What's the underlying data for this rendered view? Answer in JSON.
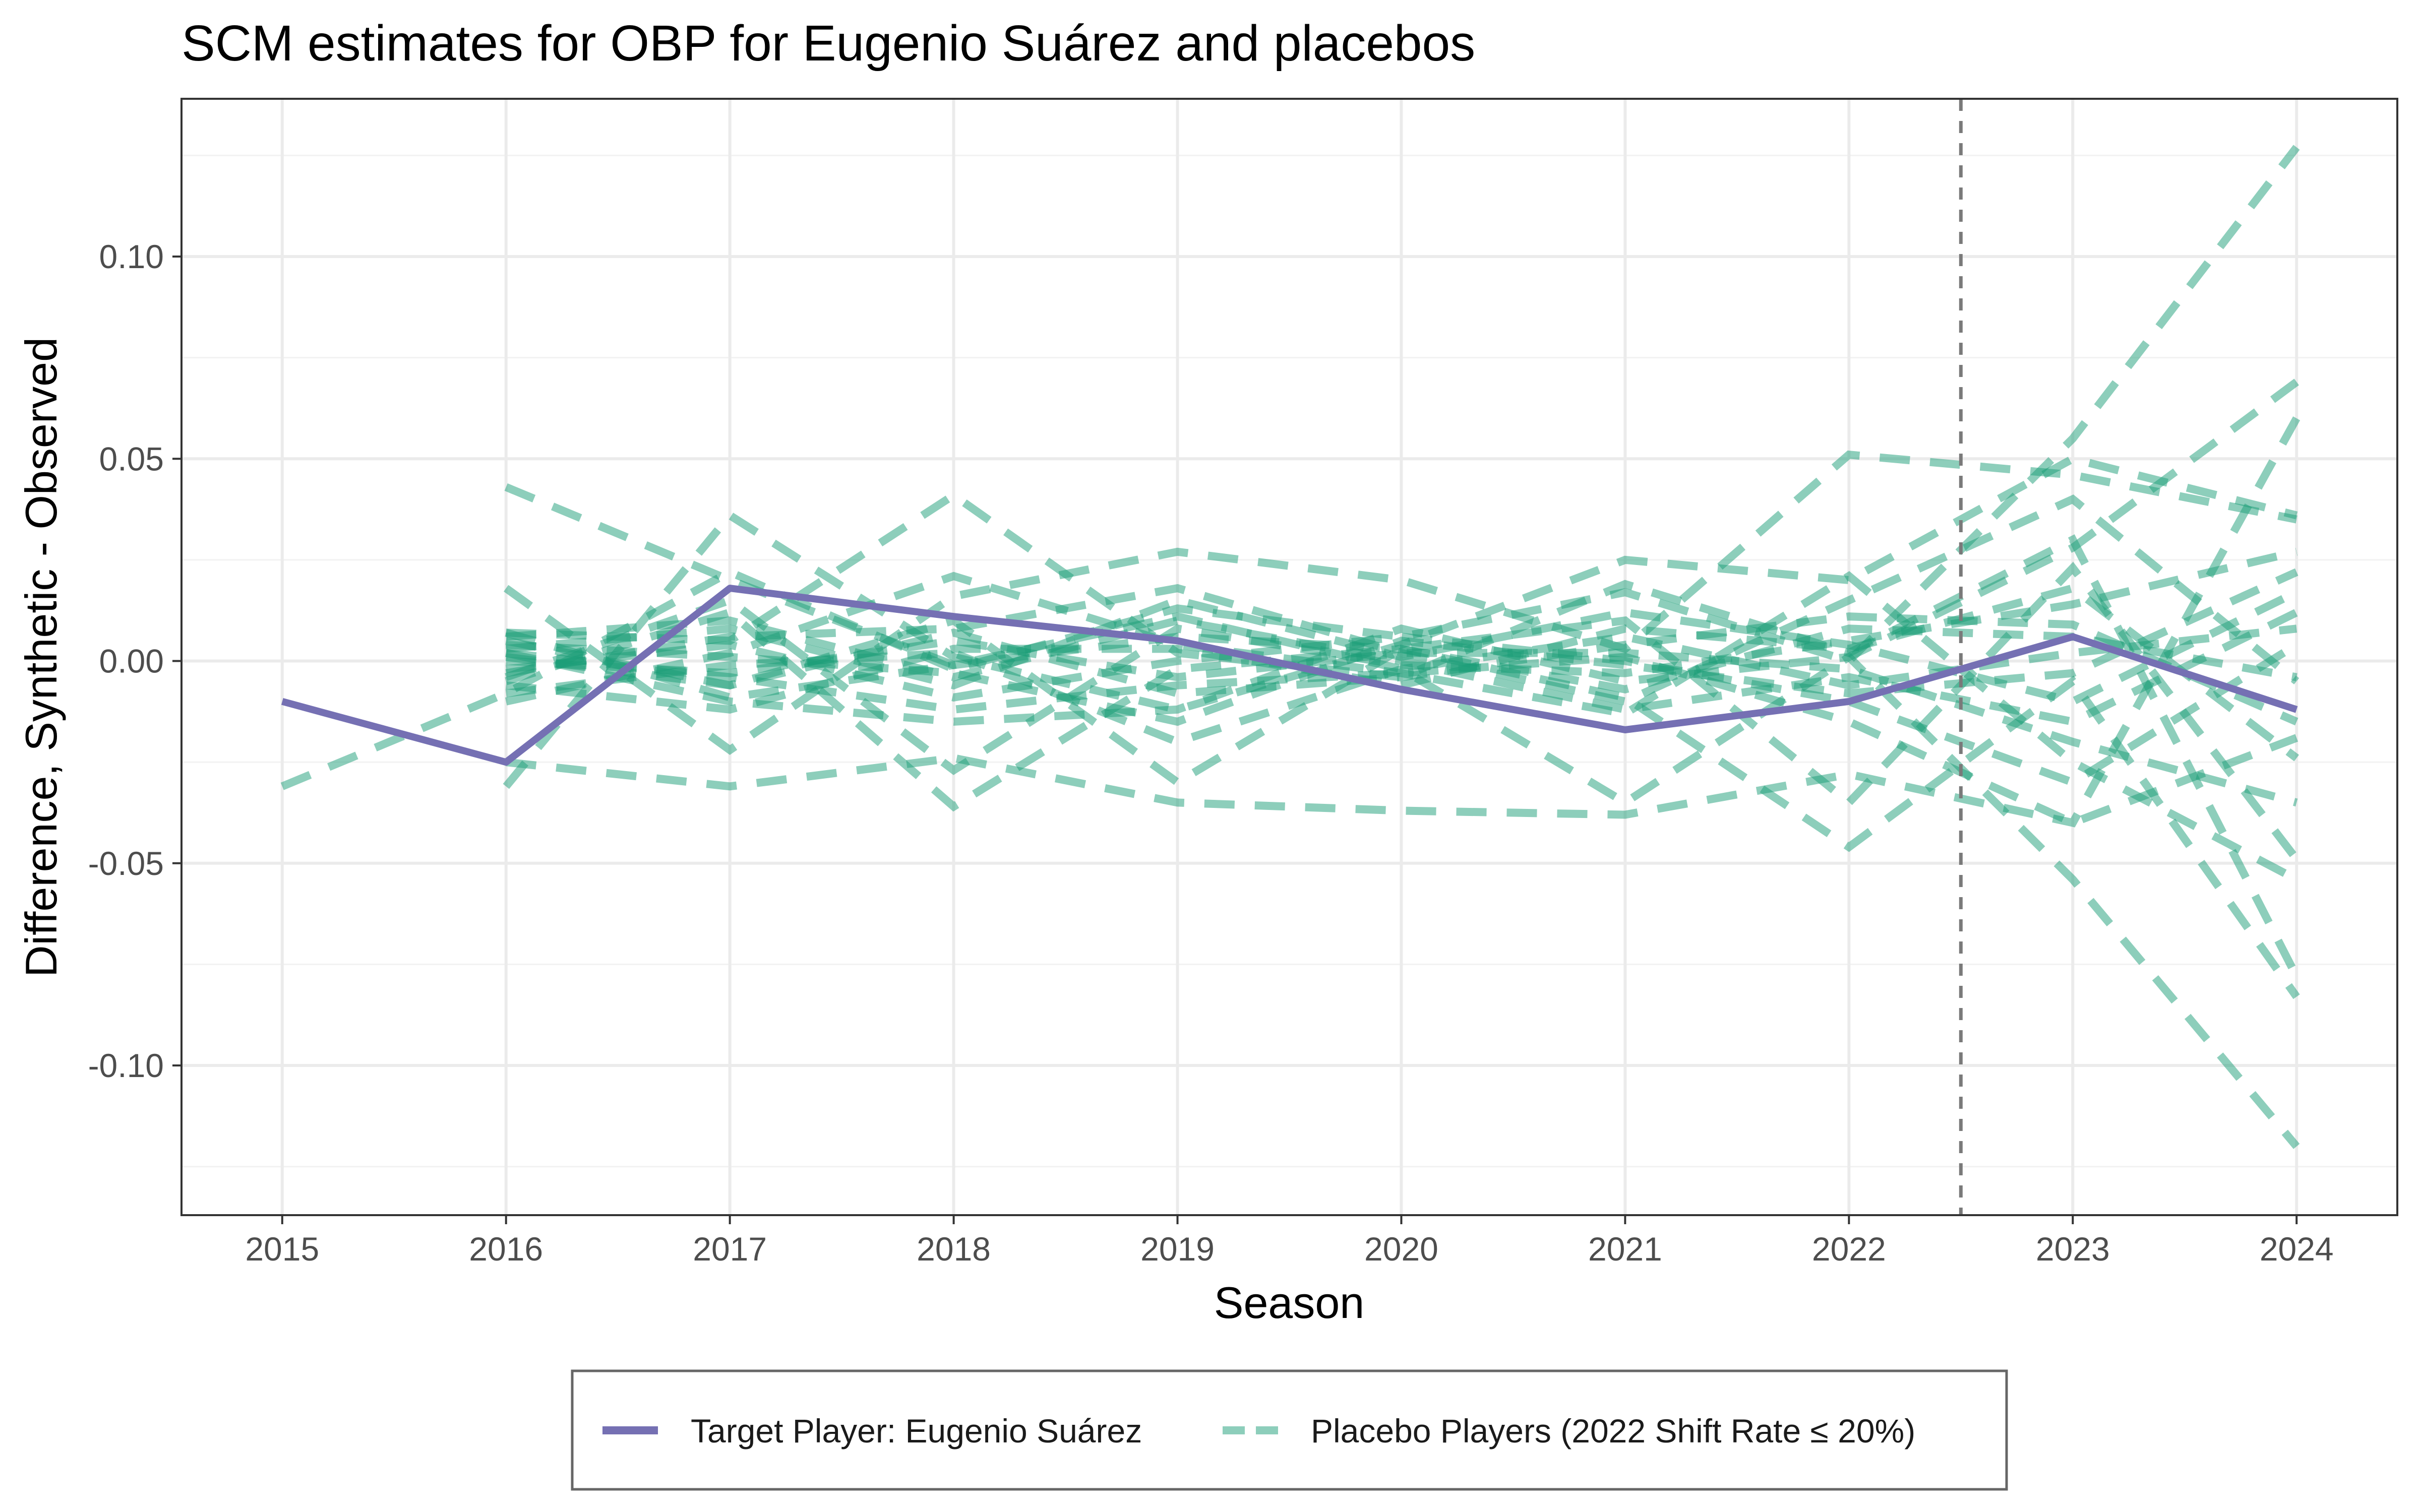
{
  "chart_data": {
    "type": "line",
    "title": "SCM estimates for OBP for Eugenio Suárez and placebos",
    "xlabel": "Season",
    "ylabel": "Difference, Synthetic - Observed",
    "x": [
      2015,
      2016,
      2017,
      2018,
      2019,
      2020,
      2021,
      2022,
      2023,
      2024
    ],
    "x_ticks": [
      "2015",
      "2016",
      "2017",
      "2018",
      "2019",
      "2020",
      "2021",
      "2022",
      "2023",
      "2024"
    ],
    "xlim": [
      2014.55,
      2024.45
    ],
    "ylim": [
      -0.137,
      0.139
    ],
    "y_ticks": [
      0.1,
      0.05,
      0.0,
      -0.05,
      -0.1
    ],
    "y_tick_labels": [
      "0.10",
      "0.05",
      "0.00",
      "-0.05",
      "-0.10"
    ],
    "grid": true,
    "treatment_line": {
      "x": 2022.5,
      "style": "dashed",
      "color": "#7a7a7a"
    },
    "legend": {
      "position": "bottom",
      "items": [
        {
          "label": "Target Player: Eugenio Suárez",
          "color": "#7570b3",
          "style": "solid"
        },
        {
          "label": "Placebo Players (2022 Shift Rate ≤ 20%)",
          "color": "#1b9e77",
          "style": "dashed"
        }
      ]
    },
    "series": [
      {
        "name": "Target Player: Eugenio Suárez",
        "role": "target",
        "color": "#7570b3",
        "x": [
          2015,
          2016,
          2017,
          2018,
          2019,
          2020,
          2021,
          2022,
          2023,
          2024
        ],
        "values": [
          -0.01,
          -0.025,
          0.018,
          0.011,
          0.005,
          -0.007,
          -0.017,
          -0.01,
          0.006,
          -0.012
        ]
      },
      {
        "role": "placebo",
        "color": "#1b9e77",
        "x": [
          2015,
          2016,
          2017,
          2018,
          2019,
          2020,
          2021,
          2022,
          2023,
          2024
        ],
        "values": [
          -0.031,
          -0.008,
          0.022,
          -0.002,
          0.013,
          0.006,
          0.017,
          0.0,
          0.055,
          0.127
        ]
      },
      {
        "role": "placebo",
        "color": "#1b9e77",
        "x": [
          2016,
          2017,
          2018,
          2019,
          2020,
          2021,
          2022,
          2023,
          2024
        ],
        "values": [
          0.043,
          0.02,
          -0.001,
          0.011,
          -0.002,
          -0.035,
          0.001,
          0.028,
          0.069
        ]
      },
      {
        "role": "placebo",
        "color": "#1b9e77",
        "x": [
          2016,
          2017,
          2018,
          2019,
          2020,
          2021,
          2022,
          2023,
          2024
        ],
        "values": [
          0.018,
          -0.022,
          0.016,
          0.027,
          0.02,
          0.003,
          0.051,
          0.046,
          0.035
        ]
      },
      {
        "role": "placebo",
        "color": "#1b9e77",
        "x": [
          2016,
          2017,
          2018,
          2019,
          2020,
          2021,
          2022,
          2023,
          2024
        ],
        "values": [
          -0.031,
          0.036,
          0.001,
          -0.012,
          0.004,
          0.025,
          0.02,
          0.05,
          0.036
        ]
      },
      {
        "role": "placebo",
        "color": "#1b9e77",
        "x": [
          2016,
          2017,
          2018,
          2019,
          2020,
          2021,
          2022,
          2023,
          2024
        ],
        "values": [
          -0.025,
          -0.031,
          -0.024,
          -0.035,
          -0.037,
          -0.038,
          -0.028,
          -0.04,
          0.06
        ]
      },
      {
        "role": "placebo",
        "color": "#1b9e77",
        "x": [
          2016,
          2017,
          2018,
          2019,
          2020,
          2021,
          2022,
          2023,
          2024
        ],
        "values": [
          0.007,
          0.005,
          0.041,
          0.002,
          -0.004,
          0.019,
          0.002,
          0.03,
          -0.078
        ]
      },
      {
        "role": "placebo",
        "color": "#1b9e77",
        "x": [
          2016,
          2017,
          2018,
          2019,
          2020,
          2021,
          2022,
          2023,
          2024
        ],
        "values": [
          -0.005,
          0.012,
          -0.036,
          -0.002,
          0.003,
          -0.009,
          -0.046,
          -0.005,
          -0.083
        ]
      },
      {
        "role": "placebo",
        "color": "#1b9e77",
        "x": [
          2016,
          2017,
          2018,
          2019,
          2020,
          2021,
          2022,
          2023,
          2024
        ],
        "values": [
          0.002,
          -0.01,
          -0.015,
          -0.012,
          0.008,
          -0.005,
          0.001,
          -0.054,
          -0.12
        ]
      },
      {
        "role": "placebo",
        "color": "#1b9e77",
        "x": [
          2016,
          2017,
          2018,
          2019,
          2020,
          2021,
          2022,
          2023,
          2024
        ],
        "values": [
          -0.01,
          0.002,
          0.021,
          0.004,
          -0.003,
          -0.013,
          0.021,
          -0.025,
          -0.054
        ]
      },
      {
        "role": "placebo",
        "color": "#1b9e77",
        "x": [
          2016,
          2017,
          2018,
          2019,
          2020,
          2021,
          2022,
          2023,
          2024
        ],
        "values": [
          0.005,
          -0.006,
          0.01,
          -0.03,
          0.003,
          0.01,
          -0.035,
          0.023,
          -0.049
        ]
      },
      {
        "role": "placebo",
        "color": "#1b9e77",
        "x": [
          2016,
          2017,
          2018,
          2019,
          2020,
          2021,
          2022,
          2023,
          2024
        ],
        "values": [
          -0.004,
          0.015,
          -0.027,
          0.008,
          -0.001,
          -0.003,
          0.005,
          0.014,
          0.027
        ]
      },
      {
        "role": "placebo",
        "color": "#1b9e77",
        "x": [
          2016,
          2017,
          2018,
          2019,
          2020,
          2021,
          2022,
          2023,
          2024
        ],
        "values": [
          0.0,
          -0.003,
          0.005,
          -0.004,
          0.002,
          0.002,
          -0.002,
          -0.02,
          -0.035
        ]
      },
      {
        "role": "placebo",
        "color": "#1b9e77",
        "x": [
          2016,
          2017,
          2018,
          2019,
          2020,
          2021,
          2022,
          2023,
          2024
        ],
        "values": [
          0.003,
          0.008,
          -0.006,
          0.015,
          0.001,
          0.012,
          0.004,
          -0.01,
          0.017
        ]
      },
      {
        "role": "placebo",
        "color": "#1b9e77",
        "x": [
          2016,
          2017,
          2018,
          2019,
          2020,
          2021,
          2022,
          2023,
          2024
        ],
        "values": [
          -0.008,
          -0.001,
          0.002,
          -0.02,
          -0.002,
          0.006,
          -0.006,
          0.002,
          0.008
        ]
      },
      {
        "role": "placebo",
        "color": "#1b9e77",
        "x": [
          2016,
          2017,
          2018,
          2019,
          2020,
          2021,
          2022,
          2023,
          2024
        ],
        "values": [
          0.007,
          -0.009,
          -0.001,
          0.006,
          0.003,
          -0.007,
          0.008,
          0.006,
          -0.004
        ]
      },
      {
        "role": "placebo",
        "color": "#1b9e77",
        "x": [
          2016,
          2017,
          2018,
          2019,
          2020,
          2021,
          2022,
          2023,
          2024
        ],
        "values": [
          -0.002,
          0.004,
          -0.009,
          0.0,
          0.006,
          0.0,
          -0.01,
          -0.03,
          0.004
        ]
      },
      {
        "role": "placebo",
        "color": "#1b9e77",
        "x": [
          2016,
          2017,
          2018,
          2019,
          2020,
          2021,
          2022,
          2023,
          2024
        ],
        "values": [
          0.001,
          -0.006,
          0.007,
          -0.008,
          -0.004,
          0.004,
          0.011,
          0.009,
          -0.015
        ]
      },
      {
        "role": "placebo",
        "color": "#1b9e77",
        "x": [
          2016,
          2017,
          2018,
          2019,
          2020,
          2021,
          2022,
          2023,
          2024
        ],
        "values": [
          0.006,
          0.01,
          -0.004,
          0.01,
          0.0,
          -0.012,
          -0.004,
          -0.015,
          0.012
        ]
      },
      {
        "role": "placebo",
        "color": "#1b9e77",
        "x": [
          2016,
          2017,
          2018,
          2019,
          2020,
          2021,
          2022,
          2023,
          2024
        ],
        "values": [
          -0.006,
          -0.012,
          0.003,
          0.003,
          -0.006,
          0.008,
          0.003,
          0.018,
          -0.024
        ]
      },
      {
        "role": "placebo",
        "color": "#1b9e77",
        "x": [
          2016,
          2017,
          2018,
          2019,
          2020,
          2021,
          2022,
          2023,
          2024
        ],
        "values": [
          0.004,
          0.001,
          -0.003,
          -0.015,
          0.005,
          -0.001,
          -0.008,
          -0.003,
          0.022
        ]
      },
      {
        "role": "placebo",
        "color": "#1b9e77",
        "x": [
          2016,
          2017,
          2018,
          2019,
          2020,
          2021,
          2022,
          2023,
          2024
        ],
        "values": [
          -0.003,
          0.006,
          0.008,
          0.018,
          0.002,
          -0.01,
          0.015,
          0.04,
          -0.005
        ]
      },
      {
        "role": "placebo",
        "color": "#1b9e77",
        "x": [
          2016,
          2017,
          2018,
          2019,
          2020,
          2021,
          2022,
          2023,
          2024
        ],
        "values": [
          0.002,
          -0.004,
          -0.012,
          -0.006,
          -0.003,
          0.001,
          -0.015,
          -0.04,
          -0.019
        ]
      }
    ]
  }
}
